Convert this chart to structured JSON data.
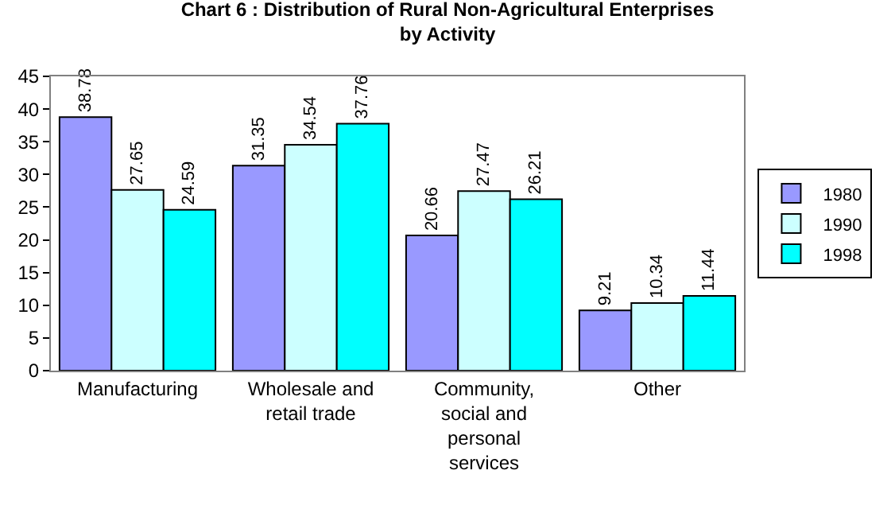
{
  "chart_data": {
    "type": "bar",
    "title": "Chart 6 : Distribution of Rural Non-Agricultural Enterprises by Activity",
    "categories": [
      "Manufacturing",
      "Wholesale and retail trade",
      "Community, social and personal services",
      "Other"
    ],
    "series": [
      {
        "name": "1980",
        "color": "#9999ff",
        "values": [
          38.78,
          31.35,
          20.66,
          9.21
        ]
      },
      {
        "name": "1990",
        "color": "#ccffff",
        "values": [
          27.65,
          34.54,
          27.47,
          10.34
        ]
      },
      {
        "name": "1998",
        "color": "#00ffff",
        "values": [
          24.59,
          37.76,
          26.21,
          11.44
        ]
      }
    ],
    "ylim": [
      0,
      45
    ],
    "yticks": [
      0,
      5,
      10,
      15,
      20,
      25,
      30,
      35,
      40,
      45
    ],
    "legend": "right",
    "data_labels": true
  }
}
